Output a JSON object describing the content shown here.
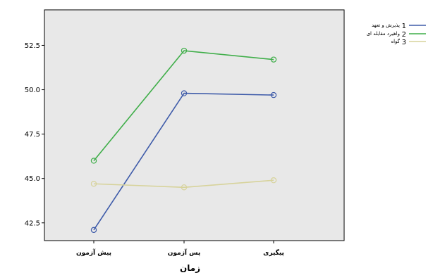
{
  "chart_data": {
    "type": "line",
    "title": "",
    "xlabel": "زمان",
    "ylabel": "",
    "categories": [
      "پیش آزمون",
      "پس آزمون",
      "پیگیری"
    ],
    "ylim": [
      41.5,
      54.5
    ],
    "yticks": [
      "42.5",
      "45.0",
      "47.5",
      "50.0",
      "52.5"
    ],
    "grid": false,
    "legend_position": "top-right",
    "series": [
      {
        "name": "پذیرش و تعهد",
        "legend_number": "1",
        "color": "#3e5ba9",
        "values": [
          42.1,
          49.8,
          49.7
        ]
      },
      {
        "name": "واهیرد مقابله ای",
        "legend_number": "2",
        "color": "#3fae49",
        "values": [
          46.0,
          52.2,
          51.7
        ]
      },
      {
        "name": "گواه",
        "legend_number": "3",
        "color": "#d7d39b",
        "values": [
          44.7,
          44.5,
          44.9
        ]
      }
    ]
  },
  "colors": {
    "plot_background": "#e8e8e8",
    "frame": "#000000"
  }
}
